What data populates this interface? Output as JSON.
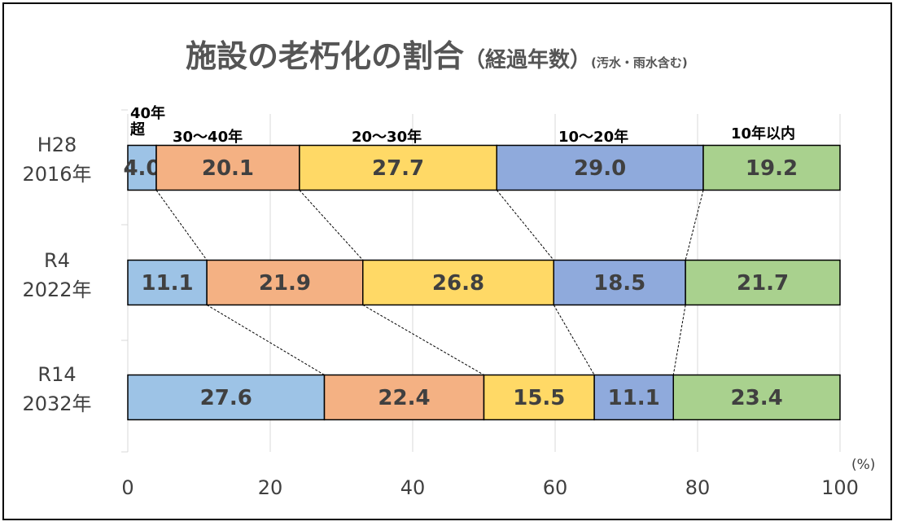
{
  "title": {
    "main": "施設の老朽化の割合",
    "sub1": "（経過年数）",
    "sub2": "(汚水・雨水含む)"
  },
  "unit": "(%)",
  "category_labels": {
    "c0_line1": "40年",
    "c0_line2": "超",
    "c1": "30～40年",
    "c2": "20～30年",
    "c3": "10～20年",
    "c4": "10年以内"
  },
  "year_labels": [
    {
      "line1": "H28",
      "line2": "2016年"
    },
    {
      "line1": "R4",
      "line2": "2022年"
    },
    {
      "line1": "R14",
      "line2": "2032年"
    }
  ],
  "colors": {
    "40年超": "#9dc3e6",
    "30～40年": "#f4b183",
    "20～30年": "#ffd966",
    "10～20年": "#8faadc",
    "10年以内": "#a9d18e"
  },
  "chart_data": {
    "type": "bar",
    "orientation": "horizontal",
    "stacked": true,
    "categories": [
      "H28 2016年",
      "R4 2022年",
      "R14 2032年"
    ],
    "series": [
      {
        "name": "40年超",
        "values": [
          4.0,
          11.1,
          27.6
        ]
      },
      {
        "name": "30～40年",
        "values": [
          20.1,
          21.9,
          22.4
        ]
      },
      {
        "name": "20～30年",
        "values": [
          27.7,
          26.8,
          15.5
        ]
      },
      {
        "name": "10～20年",
        "values": [
          29.0,
          18.5,
          11.1
        ]
      },
      {
        "name": "10年以内",
        "values": [
          19.2,
          21.7,
          23.4
        ]
      }
    ],
    "xlim": [
      0,
      100
    ],
    "xticks": [
      0,
      20,
      40,
      60,
      80,
      100
    ],
    "grid": true
  }
}
